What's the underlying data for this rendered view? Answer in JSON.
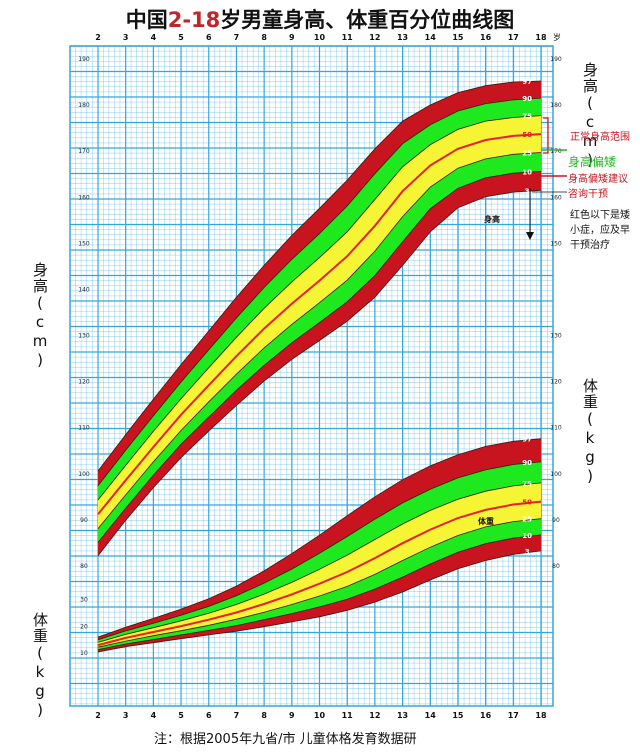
{
  "title": {
    "prefix": "中国",
    "highlight": "2-18",
    "suffix": "岁男童身高、体重百分位曲线图"
  },
  "axis": {
    "age_unit": "岁",
    "left_height_label": "身高(cm)",
    "left_weight_label": "体重(kg)",
    "right_height_label": "身高(cm)",
    "right_weight_label": "体重(kg)",
    "height_ticks": [
      80,
      90,
      100,
      110,
      120,
      130,
      140,
      150,
      160,
      170,
      180,
      190
    ],
    "right_height_ticks": [
      150,
      160,
      170,
      180,
      190
    ],
    "weight_ticks_right": [
      80,
      90,
      100,
      110,
      120,
      130
    ],
    "weight_ticks_left": [
      10,
      20,
      30
    ],
    "age_ticks": [
      2,
      3,
      4,
      5,
      6,
      7,
      8,
      9,
      10,
      11,
      12,
      13,
      14,
      15,
      16,
      17,
      18
    ]
  },
  "annotations": {
    "normal": "正常身高范围",
    "short": "身高偏矮",
    "advice": [
      "身高偏矮建议",
      "咨询干预"
    ],
    "red": [
      "红色以下是矮",
      "小症，应及早",
      "干预治疗"
    ],
    "height_label": "身高",
    "weight_label": "体重"
  },
  "colors": {
    "grid": "#33a7dc",
    "red": "#c8141e",
    "green": "#1ee81e",
    "yellow": "#f5f536",
    "median": "#e8202a",
    "title_accent": "#c0252a"
  },
  "footnote": "注：根据2005年九省/市 儿童体格发育数据研",
  "chart_data": {
    "type": "line",
    "x": [
      2,
      3,
      4,
      5,
      6,
      7,
      8,
      9,
      10,
      11,
      12,
      13,
      14,
      15,
      16,
      17,
      18
    ],
    "xlim": [
      2,
      18
    ],
    "height_ylim": [
      75,
      190
    ],
    "weight_ylim": [
      0,
      130
    ],
    "height_percentiles": {
      "3": [
        82,
        89.7,
        96.8,
        103.3,
        109.1,
        114.6,
        119.9,
        124.6,
        128.7,
        132.9,
        138.1,
        145.0,
        152.3,
        157.5,
        159.9,
        160.9,
        161.3
      ],
      "10": [
        84.9,
        92.3,
        99.5,
        106.2,
        112.1,
        117.9,
        123.3,
        128.2,
        132.6,
        137.1,
        142.8,
        150.1,
        157.3,
        161.7,
        164.0,
        165.0,
        165.4
      ],
      "25": [
        87.9,
        95.2,
        102.4,
        109.2,
        115.4,
        121.4,
        127.1,
        132.2,
        136.9,
        141.8,
        148.1,
        155.6,
        162.0,
        166.1,
        168.1,
        169.1,
        169.5
      ],
      "50": [
        91.0,
        98.4,
        105.6,
        112.6,
        119.0,
        125.3,
        131.3,
        136.7,
        141.7,
        147.0,
        153.6,
        161.1,
        166.7,
        170.3,
        172.2,
        173.1,
        173.5
      ],
      "75": [
        94.1,
        101.6,
        109.0,
        116.1,
        122.8,
        129.4,
        135.7,
        141.4,
        146.7,
        152.3,
        159.3,
        166.4,
        171.2,
        174.5,
        176.3,
        177.1,
        177.5
      ],
      "90": [
        97.2,
        104.9,
        112.4,
        119.7,
        126.7,
        133.6,
        140.2,
        146.3,
        151.9,
        157.9,
        164.9,
        171.4,
        175.5,
        178.5,
        180.1,
        180.9,
        181.3
      ],
      "97": [
        100.4,
        108.3,
        116.0,
        123.5,
        130.8,
        138.1,
        145.0,
        151.5,
        157.4,
        163.5,
        170.3,
        176.3,
        179.8,
        182.5,
        184.0,
        184.8,
        185.0
      ]
    },
    "weight_percentiles": {
      "3": [
        10.0,
        12.0,
        13.5,
        15.0,
        16.4,
        17.8,
        19.5,
        21.3,
        23.2,
        25.6,
        28.7,
        32.5,
        37.0,
        41.2,
        44.3,
        46.6,
        47.9
      ],
      "10": [
        10.9,
        13.0,
        14.7,
        16.4,
        18.1,
        19.9,
        22.1,
        24.4,
        26.9,
        29.8,
        33.6,
        38.1,
        43.0,
        47.4,
        50.6,
        52.7,
        53.9
      ],
      "25": [
        11.8,
        14.1,
        16.1,
        18.0,
        20.0,
        22.3,
        24.9,
        27.8,
        31.0,
        34.6,
        39.1,
        44.3,
        49.3,
        53.7,
        56.9,
        58.9,
        60.0
      ],
      "50": [
        12.6,
        15.3,
        17.5,
        19.7,
        22.1,
        24.8,
        28.0,
        31.6,
        35.6,
        40.0,
        45.2,
        50.8,
        55.9,
        60.2,
        63.3,
        65.3,
        66.4
      ],
      "75": [
        13.6,
        16.6,
        19.1,
        21.7,
        24.5,
        27.8,
        31.7,
        36.1,
        41.0,
        46.3,
        52.2,
        58.0,
        63.1,
        67.3,
        70.3,
        72.3,
        73.4
      ],
      "90": [
        14.6,
        17.9,
        20.8,
        23.8,
        27.1,
        31.1,
        35.8,
        41.1,
        47.0,
        53.3,
        59.8,
        65.9,
        71.0,
        75.3,
        78.3,
        80.3,
        81.3
      ],
      "97": [
        15.6,
        19.3,
        22.6,
        26.1,
        30.0,
        34.7,
        40.4,
        46.9,
        53.8,
        61.1,
        68.2,
        74.6,
        79.8,
        84.0,
        87.1,
        89.0,
        90.0
      ]
    },
    "percentile_labels": [
      "97",
      "90",
      "75",
      "50",
      "25",
      "10",
      "3"
    ]
  }
}
